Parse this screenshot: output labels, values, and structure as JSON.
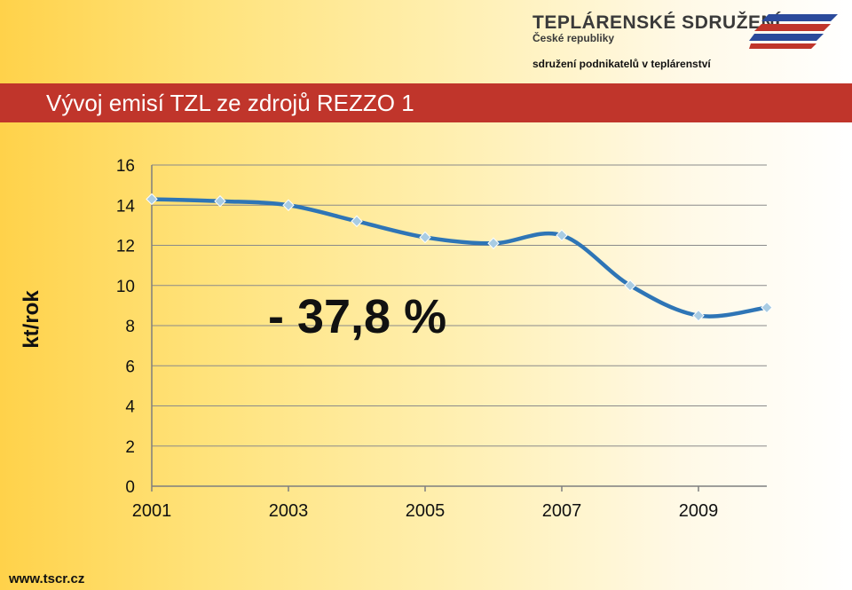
{
  "header": {
    "logo_title": "TEPLÁRENSKÉ SDRUŽENÍ",
    "logo_subtitle": "České republiky",
    "tagline": "sdružení podnikatelů v teplárenství",
    "banner_title": "Vývoj emisí TZL ze zdrojů REZZO 1",
    "colors": {
      "banner": "#c0352b",
      "logo_blue": "#2b4a9b",
      "logo_red": "#c0352b"
    }
  },
  "footer": {
    "url": "www.tscr.cz"
  },
  "chart_data": {
    "type": "line",
    "title": "Vývoj emisí TZL ze zdrojů REZZO 1",
    "xlabel": "",
    "ylabel": "kt/rok",
    "x": [
      2001,
      2002,
      2003,
      2004,
      2005,
      2006,
      2007,
      2008,
      2009,
      2010
    ],
    "series": [
      {
        "values": [
          14.3,
          14.2,
          14.0,
          13.2,
          12.4,
          12.1,
          12.5,
          10.0,
          8.5,
          8.9
        ],
        "color": "#2e75b6",
        "marker_color": "#a9cce3"
      }
    ],
    "xlim": [
      2001,
      2010
    ],
    "ylim": [
      0,
      16
    ],
    "yticks": [
      0,
      2,
      4,
      6,
      8,
      10,
      12,
      14,
      16
    ],
    "xtick_labels": [
      "2001",
      "2003",
      "2005",
      "2007",
      "2009"
    ],
    "grid": true,
    "legend": "none",
    "annotation": "- 37,8 %"
  }
}
